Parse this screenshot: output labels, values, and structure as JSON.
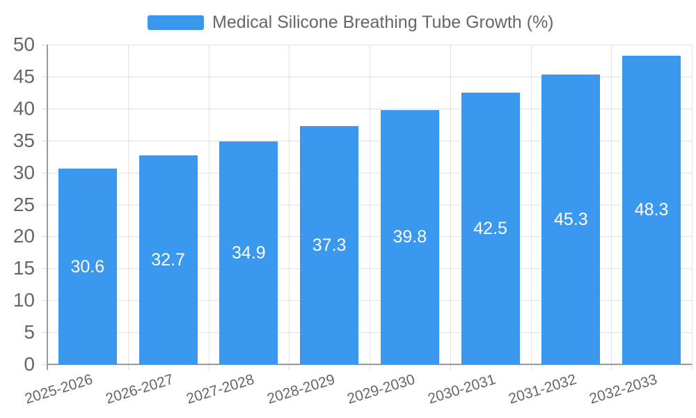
{
  "chart_data": {
    "type": "bar",
    "title": "Medical Silicone Breathing Tube Growth (%)",
    "legend": {
      "label": "Medical Silicone Breathing Tube Growth (%)",
      "position": "top"
    },
    "categories": [
      "2025-2026",
      "2026-2027",
      "2027-2028",
      "2028-2029",
      "2029-2030",
      "2030-2031",
      "2031-2032",
      "2032-2033"
    ],
    "values": [
      30.6,
      32.7,
      34.9,
      37.3,
      39.8,
      42.5,
      45.3,
      48.3
    ],
    "value_labels": [
      "30.6",
      "32.7",
      "34.9",
      "37.3",
      "39.8",
      "42.5",
      "45.3",
      "48.3"
    ],
    "xlabel": "",
    "ylabel": "",
    "ylim": [
      0,
      50
    ],
    "y_tick_step": 5,
    "y_tick_labels": [
      "0",
      "5",
      "10",
      "15",
      "20",
      "25",
      "30",
      "35",
      "40",
      "45",
      "50"
    ],
    "grid": true,
    "colors": {
      "bar": "#3a99ee",
      "grid": "#e2e2e2",
      "axis": "#999999",
      "tick_label": "#666666",
      "value_label": "#ffffff",
      "title": "#666666",
      "background": "#ffffff"
    }
  }
}
